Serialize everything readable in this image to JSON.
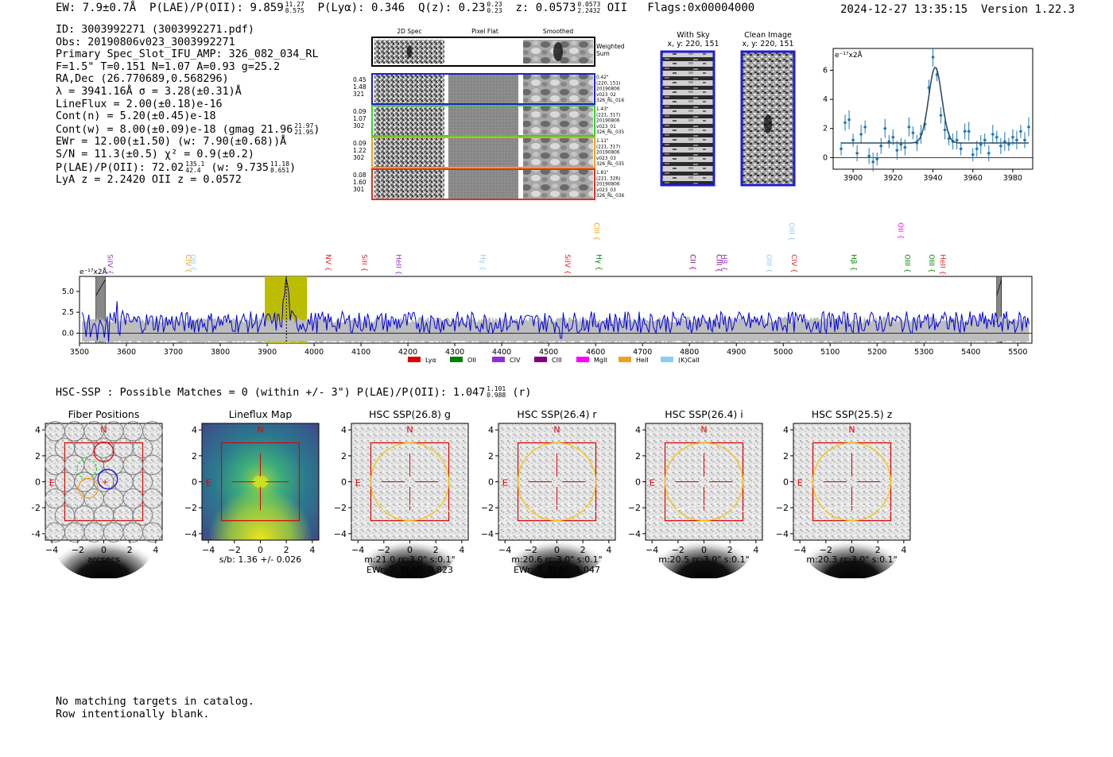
{
  "header": {
    "ew_label": "EW:",
    "ew_value": "7.9±0.7Å",
    "plae_label": "P(LAE)/P(OII):",
    "plae_value": "9.859",
    "plae_hi": "11.27",
    "plae_lo": "8.575",
    "plya_label": "P(Lyα):",
    "plya_value": "0.346",
    "qz_label": "Q(z):",
    "qz_value": "0.23",
    "qz_hi": "0.23",
    "qz_lo": "0.23",
    "z_label": "z:",
    "z_value": "0.0573",
    "z_hi": "0.0573",
    "z_lo": "2.2432",
    "z_line": "OII",
    "flags": "Flags:0x00004000",
    "datetime": "2024-12-27 13:35:15",
    "version": "Version 1.22.3"
  },
  "info": {
    "id_line": "ID: 3003992271 (3003992271.pdf)",
    "obs_line": "Obs: 20190806v023_3003992271",
    "primary_line": "Primary Spec_Slot_IFU_AMP: 326_082_034_RL",
    "fwhm_line": "F=1.5\"  T=0.151  N=1.07  A=0.93  g=25.2",
    "radec_line": "RA,Dec (26.770689,0.568296)",
    "lambda_line": "λ = 3941.16Å   σ = 3.28(±0.31)Å",
    "lineflux_line": "LineFlux = 2.00(±0.18)e-16",
    "contn_line": "Cont(n) = 5.20(±0.45)e-18",
    "contw_line": "Cont(w) = 8.00(±0.09)e-18 (gmag 21.96",
    "contw_hi": "21.97",
    "contw_lo": "21.95",
    "ewr_line": "EWr = 12.00(±1.50) (w: 7.90(±0.68))Å",
    "sn_line": "S/N = 11.3(±0.5)  χ² = 0.9(±0.2)",
    "plae_line": "P(LAE)/P(OII): 72.02",
    "plae_hi": "135.1",
    "plae_lo": "42.4",
    "plae_w": "(w: 9.735",
    "plae_w_hi": "11.18",
    "plae_w_lo": "8.651",
    "z_line": "LyA z = 2.2420  OII z = 0.0572"
  },
  "cutouts": {
    "col_2d": "2D Spec",
    "col_flat": "Pixel Flat",
    "col_smooth": "Smoothed",
    "weighted_sum": "Weighted Sum",
    "rows": [
      {
        "vals": [
          "0.45",
          "1.48",
          "321"
        ],
        "color": "#1f1fd0",
        "meta": [
          "0.42\"",
          "(220, 151)",
          "20190806",
          "v023_02",
          "326_RL_016"
        ]
      },
      {
        "vals": [
          "0.09",
          "1.07",
          "302"
        ],
        "color": "#2cd82c",
        "meta": [
          "1.43\"",
          "(221, 317)",
          "20190806",
          "v023_01",
          "326_RL_035"
        ]
      },
      {
        "vals": [
          "0.09",
          "1.22",
          "302"
        ],
        "color": "#f0a020",
        "meta": [
          "1.11\"",
          "(221, 317)",
          "20190806",
          "v023_03",
          "326_RL_035"
        ]
      },
      {
        "vals": [
          "0.08",
          "1.60",
          "301"
        ],
        "color": "#e03020",
        "meta": [
          "1.81\"",
          "(221, 326)",
          "20190806",
          "v023_03",
          "326_RL_036"
        ]
      }
    ],
    "with_sky_title": "With Sky",
    "with_sky_coords": "x, y: 220, 151",
    "clean_title": "Clean Image",
    "clean_coords": "x, y: 220, 151"
  },
  "zoom_plot": {
    "unit": "e⁻¹⁷x2Å",
    "xticks": [
      "3900",
      "3920",
      "3940",
      "3960",
      "3980"
    ],
    "yticks": [
      "0",
      "2",
      "4",
      "6"
    ]
  },
  "chart_data": [
    {
      "type": "scatter",
      "title": "",
      "xlabel": "",
      "ylabel": "e⁻¹⁷x2Å",
      "xlim": [
        3890,
        3990
      ],
      "ylim": [
        -0.8,
        7.5
      ],
      "x": [
        3894,
        3896,
        3898,
        3900,
        3902,
        3904,
        3906,
        3908,
        3910,
        3912,
        3914,
        3916,
        3918,
        3920,
        3922,
        3924,
        3926,
        3928,
        3930,
        3932,
        3934,
        3936,
        3938,
        3940,
        3942,
        3944,
        3946,
        3948,
        3950,
        3952,
        3954,
        3956,
        3958,
        3960,
        3962,
        3964,
        3966,
        3968,
        3970,
        3972,
        3974,
        3976,
        3978,
        3980,
        3982,
        3984,
        3986,
        3988
      ],
      "y": [
        0.6,
        2.4,
        2.6,
        1.2,
        0.3,
        1.6,
        2.1,
        0.1,
        -0.3,
        -0.1,
        0.8,
        2.0,
        1.1,
        1.4,
        0.5,
        0.9,
        0.7,
        2.1,
        1.7,
        1.0,
        1.6,
        2.3,
        4.8,
        6.9,
        5.7,
        2.9,
        1.9,
        1.3,
        1.1,
        1.2,
        0.6,
        1.8,
        1.8,
        0.2,
        0.6,
        0.9,
        1.2,
        0.3,
        1.6,
        1.4,
        0.8,
        1.1,
        0.9,
        1.4,
        1.2,
        1.8,
        1.2,
        2.1
      ],
      "fit": {
        "continuum": 1.0,
        "center": 3941.16,
        "sigma": 3.28,
        "amplitude": 5.2
      }
    },
    {
      "type": "line",
      "title": "",
      "xlabel": "",
      "ylabel": "e⁻¹⁷x2Å",
      "xlim": [
        3500,
        5530
      ],
      "ylim": [
        -1.2,
        6.8
      ],
      "xticks": [
        3500,
        3600,
        3700,
        3800,
        3900,
        4000,
        4100,
        4200,
        4300,
        4400,
        4500,
        4600,
        4700,
        4800,
        4900,
        5000,
        5100,
        5200,
        5300,
        5400,
        5500
      ],
      "yticks": [
        "0.0",
        "2.5",
        "5.0"
      ],
      "series": [
        {
          "name": "",
          "color": "#0000dd",
          "description": "noisy observed spectrum, baseline ~1.5, emission peak near 3941 reaching ~6.5"
        },
        {
          "name": "",
          "color": "#bbbbbb",
          "description": "grey error band"
        }
      ],
      "highlight_band": [
        3895,
        3985
      ],
      "masked_regions": [
        [
          3535,
          3555
        ],
        [
          5455,
          5465
        ]
      ],
      "line_marker": 3941,
      "emission_lines": [
        {
          "label": "SiIV",
          "x": 3555,
          "color": "#9030d0",
          "row": 2
        },
        {
          "label": "CIV",
          "x": 3722,
          "color": "#f0a020",
          "row": 2
        },
        {
          "label": "OII",
          "x": 3732,
          "color": "#87cefa",
          "row": 2
        },
        {
          "label": "NV",
          "x": 4020,
          "color": "#e02020",
          "row": 2
        },
        {
          "label": "SiII",
          "x": 4097,
          "color": "#e02020",
          "row": 2
        },
        {
          "label": "HeII",
          "x": 4170,
          "color": "#9030d0",
          "row": 2
        },
        {
          "label": "Hγ",
          "x": 4350,
          "color": "#87cefa",
          "row": 2
        },
        {
          "label": "SiIV",
          "x": 4530,
          "color": "#e02020",
          "row": 2
        },
        {
          "label": "CIII",
          "x": 4592,
          "color": "#f0a020",
          "row": 0
        },
        {
          "label": "Hγ",
          "x": 4597,
          "color": "#008000",
          "row": 2
        },
        {
          "label": "CII",
          "x": 4797,
          "color": "#800080",
          "row": 2
        },
        {
          "label": "CIII",
          "x": 4853,
          "color": "#800080",
          "row": 2
        },
        {
          "label": "Hβ",
          "x": 4864,
          "color": "#9030d0",
          "row": 2
        },
        {
          "label": "OIII",
          "x": 4960,
          "color": "#87cefa",
          "row": 2
        },
        {
          "label": "OIII",
          "x": 5008,
          "color": "#87cefa",
          "row": 0
        },
        {
          "label": "CIV",
          "x": 5013,
          "color": "#e02020",
          "row": 2
        },
        {
          "label": "Hβ",
          "x": 5140,
          "color": "#008000",
          "row": 2
        },
        {
          "label": "OII",
          "x": 5240,
          "color": "#ff00ff",
          "row": 0
        },
        {
          "label": "OIII",
          "x": 5255,
          "color": "#008000",
          "row": 2
        },
        {
          "label": "OIII",
          "x": 5306,
          "color": "#008000",
          "row": 2
        },
        {
          "label": "HeII",
          "x": 5330,
          "color": "#e02020",
          "row": 2
        }
      ],
      "legend": [
        {
          "label": "Lyα",
          "color": "#e00000"
        },
        {
          "label": "OII",
          "color": "#008000"
        },
        {
          "label": "CIV",
          "color": "#9030d0"
        },
        {
          "label": "CIII",
          "color": "#800080"
        },
        {
          "label": "MgII",
          "color": "#ff00ff"
        },
        {
          "label": "HeII",
          "color": "#f0a020"
        },
        {
          "label": "(K)CaII",
          "color": "#87cefa"
        }
      ],
      "legend_placement": "bottom"
    }
  ],
  "hsc": {
    "title_prefix": "HSC-SSP : Possible Matches = 0 (within +/- 3\")  P(LAE)/P(OII): 1.047",
    "title_hi": "1.101",
    "title_lo": "0.988",
    "title_suffix": "(r)",
    "xticks": [
      "−4",
      "−2",
      "0",
      "2",
      "4"
    ],
    "yticks": [
      "4",
      "2",
      "0",
      "−2",
      "−4"
    ],
    "north": "N",
    "east": "E",
    "panels": [
      {
        "title": "Fiber Positions",
        "caption1": "arcsecs",
        "caption2": "",
        "kind": "fiber"
      },
      {
        "title": "Lineflux Map",
        "caption1": "s/b: 1.36 +/- 0.026",
        "caption2": "",
        "kind": "lineflux"
      },
      {
        "title": "HSC SSP(26.8) g",
        "caption1": "m:21.0 rc:3.0\"  s:0.1\"",
        "caption2": "EWr: 2, PLAE: 0.823",
        "kind": "hsc"
      },
      {
        "title": "HSC SSP(26.4) r",
        "caption1": "m:20.6 rc:3.0\"  s:0.1\"",
        "caption2": "EWr: 3, PLAE: 1.047",
        "kind": "hsc"
      },
      {
        "title": "HSC SSP(26.4) i",
        "caption1": "m:20.5 rc:3.0\"  s:0.1\"",
        "caption2": "",
        "kind": "hsc"
      },
      {
        "title": "HSC SSP(25.5) z",
        "caption1": "m:20.3 rc:3.0\"  s:0.1\"",
        "caption2": "",
        "kind": "hsc"
      }
    ]
  },
  "footer": {
    "line1": "No matching targets in catalog.",
    "line2": "Row intentionally blank."
  }
}
